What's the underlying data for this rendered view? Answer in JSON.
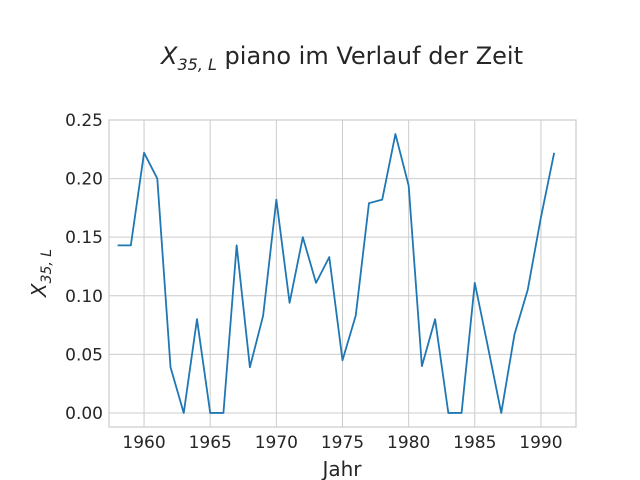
{
  "chart_data": {
    "type": "line",
    "title_prefix": "X",
    "title_subscript": "35, L",
    "title_suffix": " piano im Verlauf der Zeit",
    "xlabel": "Jahr",
    "ylabel_main": "X",
    "ylabel_subscript": "35, L",
    "xlim": [
      1957.35,
      1992.65
    ],
    "ylim": [
      -0.012,
      0.25
    ],
    "xticks": [
      1960,
      1965,
      1970,
      1975,
      1980,
      1985,
      1990
    ],
    "yticks": [
      0.0,
      0.05,
      0.1,
      0.15,
      0.2,
      0.25
    ],
    "ytick_labels": [
      "0.00",
      "0.05",
      "0.10",
      "0.15",
      "0.20",
      "0.25"
    ],
    "grid": true,
    "series": [
      {
        "color": "#1f77b4",
        "x": [
          1958,
          1959,
          1960,
          1961,
          1962,
          1963,
          1964,
          1965,
          1966,
          1967,
          1968,
          1969,
          1970,
          1971,
          1972,
          1973,
          1974,
          1975,
          1976,
          1977,
          1978,
          1979,
          1980,
          1981,
          1982,
          1983,
          1984,
          1985,
          1986,
          1987,
          1988,
          1989,
          1990,
          1991
        ],
        "y": [
          0.143,
          0.143,
          0.222,
          0.2,
          0.039,
          0.0,
          0.08,
          0.0,
          0.0,
          0.143,
          0.039,
          0.083,
          0.182,
          0.094,
          0.15,
          0.111,
          0.133,
          0.045,
          0.083,
          0.179,
          0.182,
          0.238,
          0.194,
          0.04,
          0.08,
          0.0,
          0.0,
          0.111,
          0.056,
          0.0,
          0.067,
          0.105,
          0.167,
          0.222
        ]
      }
    ]
  }
}
